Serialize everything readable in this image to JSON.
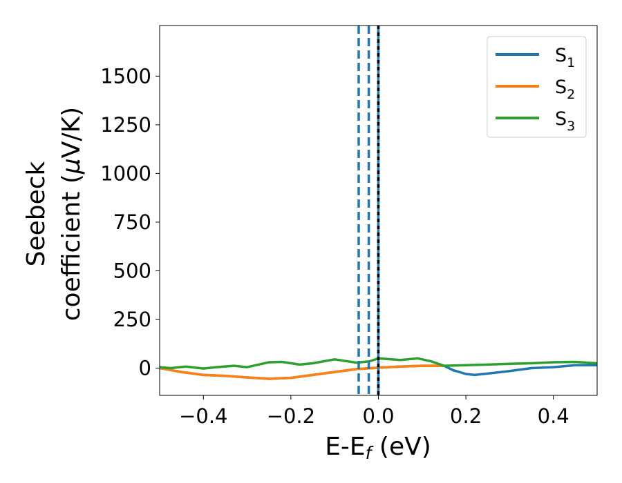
{
  "chart_data": {
    "type": "line",
    "xlabel": {
      "main": "E-E",
      "sub": "f",
      "unit": " (eV)"
    },
    "ylabel": {
      "line1": "Seebeck",
      "line2": "coefficient  (",
      "mu": "μ",
      "unit": "V/K)"
    },
    "xlim": [
      -0.5,
      0.5
    ],
    "ylim": [
      -140,
      1760
    ],
    "xticks": [
      -0.4,
      -0.2,
      0.0,
      0.2,
      0.4
    ],
    "xtick_labels": [
      "−0.4",
      "−0.2",
      "0.0",
      "0.2",
      "0.4"
    ],
    "yticks": [
      0,
      250,
      500,
      750,
      1000,
      1250,
      1500
    ],
    "ytick_labels": [
      "0",
      "250",
      "500",
      "750",
      "1000",
      "1250",
      "1500"
    ],
    "grid": false,
    "legend_position": "top-right",
    "series": [
      {
        "name": "S",
        "sub": "1",
        "color": "#1f77b4",
        "x": [
          -0.5,
          -0.45,
          -0.4,
          -0.35,
          -0.3,
          -0.25,
          -0.2,
          -0.15,
          -0.1,
          -0.05,
          0.0,
          0.05,
          0.1,
          0.15,
          0.17,
          0.2,
          0.22,
          0.25,
          0.3,
          0.35,
          0.4,
          0.45,
          0.5
        ],
        "y": [
          0,
          -20,
          -35,
          -40,
          -48,
          -55,
          -50,
          -35,
          -20,
          -5,
          2,
          8,
          12,
          12,
          -10,
          -30,
          -35,
          -28,
          -15,
          0,
          5,
          15,
          15
        ]
      },
      {
        "name": "S",
        "sub": "2",
        "color": "#ff7f0e",
        "x": [
          -0.5,
          -0.45,
          -0.4,
          -0.35,
          -0.3,
          -0.25,
          -0.2,
          -0.15,
          -0.1,
          -0.05,
          0.0,
          0.05,
          0.1,
          0.15
        ],
        "y": [
          0,
          -20,
          -35,
          -40,
          -48,
          -55,
          -50,
          -35,
          -20,
          -5,
          2,
          8,
          12,
          12
        ]
      },
      {
        "name": "S",
        "sub": "3",
        "color": "#2ca02c",
        "x": [
          -0.5,
          -0.475,
          -0.44,
          -0.4,
          -0.37,
          -0.33,
          -0.3,
          -0.25,
          -0.22,
          -0.18,
          -0.15,
          -0.1,
          -0.05,
          -0.02,
          0.0,
          0.03,
          0.05,
          0.09,
          0.12,
          0.15,
          0.2,
          0.25,
          0.3,
          0.35,
          0.4,
          0.45,
          0.5
        ],
        "y": [
          5,
          0,
          8,
          -2,
          5,
          12,
          5,
          30,
          32,
          18,
          25,
          45,
          28,
          35,
          50,
          45,
          42,
          50,
          35,
          12,
          15,
          18,
          22,
          25,
          30,
          32,
          25
        ]
      }
    ],
    "vlines": [
      {
        "x": -0.045,
        "color": "#1f77b4",
        "style": "dashed"
      },
      {
        "x": -0.022,
        "color": "#1f77b4",
        "style": "dashed"
      },
      {
        "x": 0.0,
        "color": "#1f77b4",
        "style": "solid"
      },
      {
        "x": 0.0,
        "color": "#000000",
        "style": "dotted"
      }
    ]
  }
}
